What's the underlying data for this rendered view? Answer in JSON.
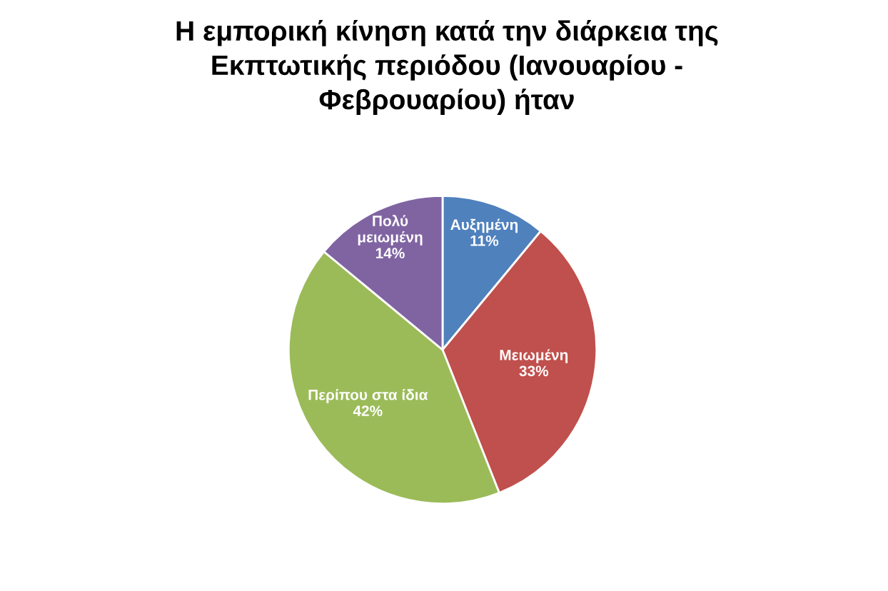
{
  "chart_data": {
    "type": "pie",
    "title": "Η εμπορική κίνηση κατά την διάρκεια της\nΕκπτωτικής περιόδου (Ιανουαρίου -\nΦεβρουαρίου) ήταν",
    "categories": [
      "Αυξημένη",
      "Μειωμένη",
      "Περίπου στα ίδια",
      "Πολύ\nμειωμένη"
    ],
    "values": [
      11,
      33,
      42,
      14
    ],
    "colors": [
      "#4f81bd",
      "#c0504d",
      "#9bbb59",
      "#8064a2"
    ],
    "value_labels": [
      "11%",
      "33%",
      "42%",
      "14%"
    ],
    "legend": false
  }
}
